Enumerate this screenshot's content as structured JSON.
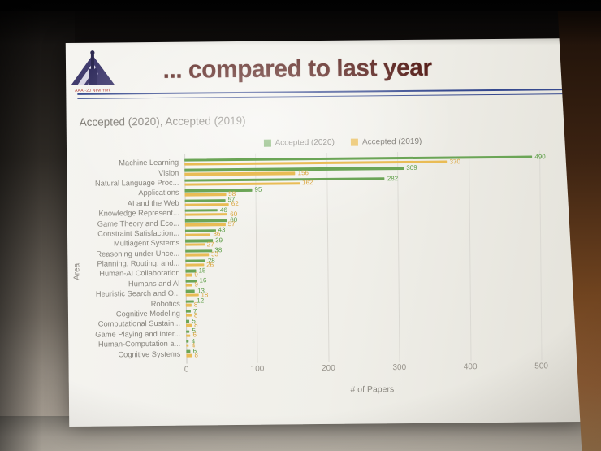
{
  "slide": {
    "title": "... compared to last year",
    "logo_caption": "AAAI-20 New York"
  },
  "chart_data": {
    "type": "bar",
    "orientation": "horizontal",
    "title": "Accepted (2020), Accepted (2019)",
    "xlabel": "# of Papers",
    "ylabel": "Area",
    "xlim": [
      0,
      500
    ],
    "xticks": [
      0,
      100,
      200,
      300,
      400,
      500
    ],
    "grid": true,
    "legend_position": "top-center",
    "categories": [
      "Machine Learning",
      "Vision",
      "Natural Language Proc...",
      "Applications",
      "AI and the Web",
      "Knowledge Represent...",
      "Game Theory and Eco...",
      "Constraint Satisfaction...",
      "Multiagent Systems",
      "Reasoning under Unce...",
      "Planning, Routing, and...",
      "Human-AI Collaboration",
      "Humans and AI",
      "Heuristic Search and O...",
      "Robotics",
      "Cognitive Modeling",
      "Computational Sustain...",
      "Game Playing and Inter...",
      "Human-Computation a...",
      "Cognitive Systems"
    ],
    "series": [
      {
        "name": "Accepted (2020)",
        "color": "#6BA556",
        "label_color": "#5C9C45",
        "values": [
          490,
          309,
          282,
          95,
          57,
          46,
          60,
          43,
          39,
          38,
          28,
          15,
          16,
          13,
          12,
          7,
          5,
          5,
          4,
          6
        ]
      },
      {
        "name": "Accepted (2019)",
        "color": "#E9BC55",
        "label_color": "#D9A43C",
        "values": [
          370,
          156,
          162,
          58,
          62,
          60,
          57,
          36,
          27,
          33,
          26,
          9,
          9,
          18,
          8,
          8,
          8,
          6,
          4,
          8
        ]
      }
    ]
  }
}
